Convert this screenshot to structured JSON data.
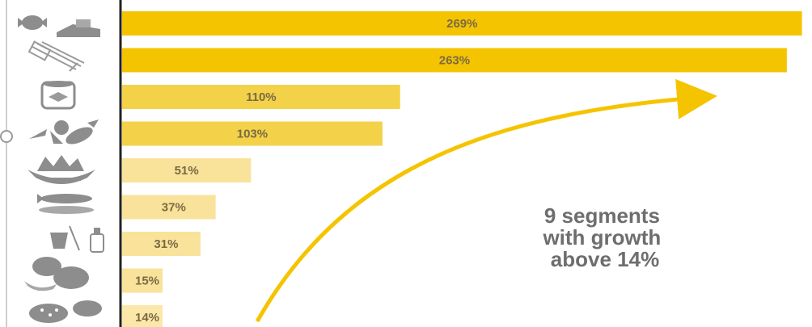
{
  "chart_data": {
    "type": "bar",
    "orientation": "horizontal",
    "categories": [
      "sweets-icon",
      "pasta-icon",
      "canned-goods-icon",
      "vegetables-icon",
      "salad-icon",
      "fish-icon",
      "beverages-icon",
      "bread-icon",
      "pastries-icon"
    ],
    "values": [
      269,
      263,
      110,
      103,
      51,
      37,
      31,
      15,
      14
    ],
    "data_labels": [
      "269%",
      "263%",
      "110%",
      "103%",
      "51%",
      "37%",
      "31%",
      "15%",
      "14%"
    ],
    "bar_colors": [
      "#f5c400",
      "#f5c400",
      "#f3d24a",
      "#f3d24a",
      "#f9e29a",
      "#f9e29a",
      "#f9e29a",
      "#f9e29a",
      "#fbe8a8"
    ],
    "xlim": [
      0,
      272
    ],
    "grid": false,
    "legend": "none",
    "annotation": {
      "lines": [
        "9 segments",
        "with growth",
        "above 14%"
      ],
      "arrow_color": "#f5c400"
    }
  },
  "colors": {
    "axis": "#222222",
    "icon": "#8d8d8d",
    "label_text": "#7a6a44",
    "annotation_text": "#6e6e6e"
  }
}
